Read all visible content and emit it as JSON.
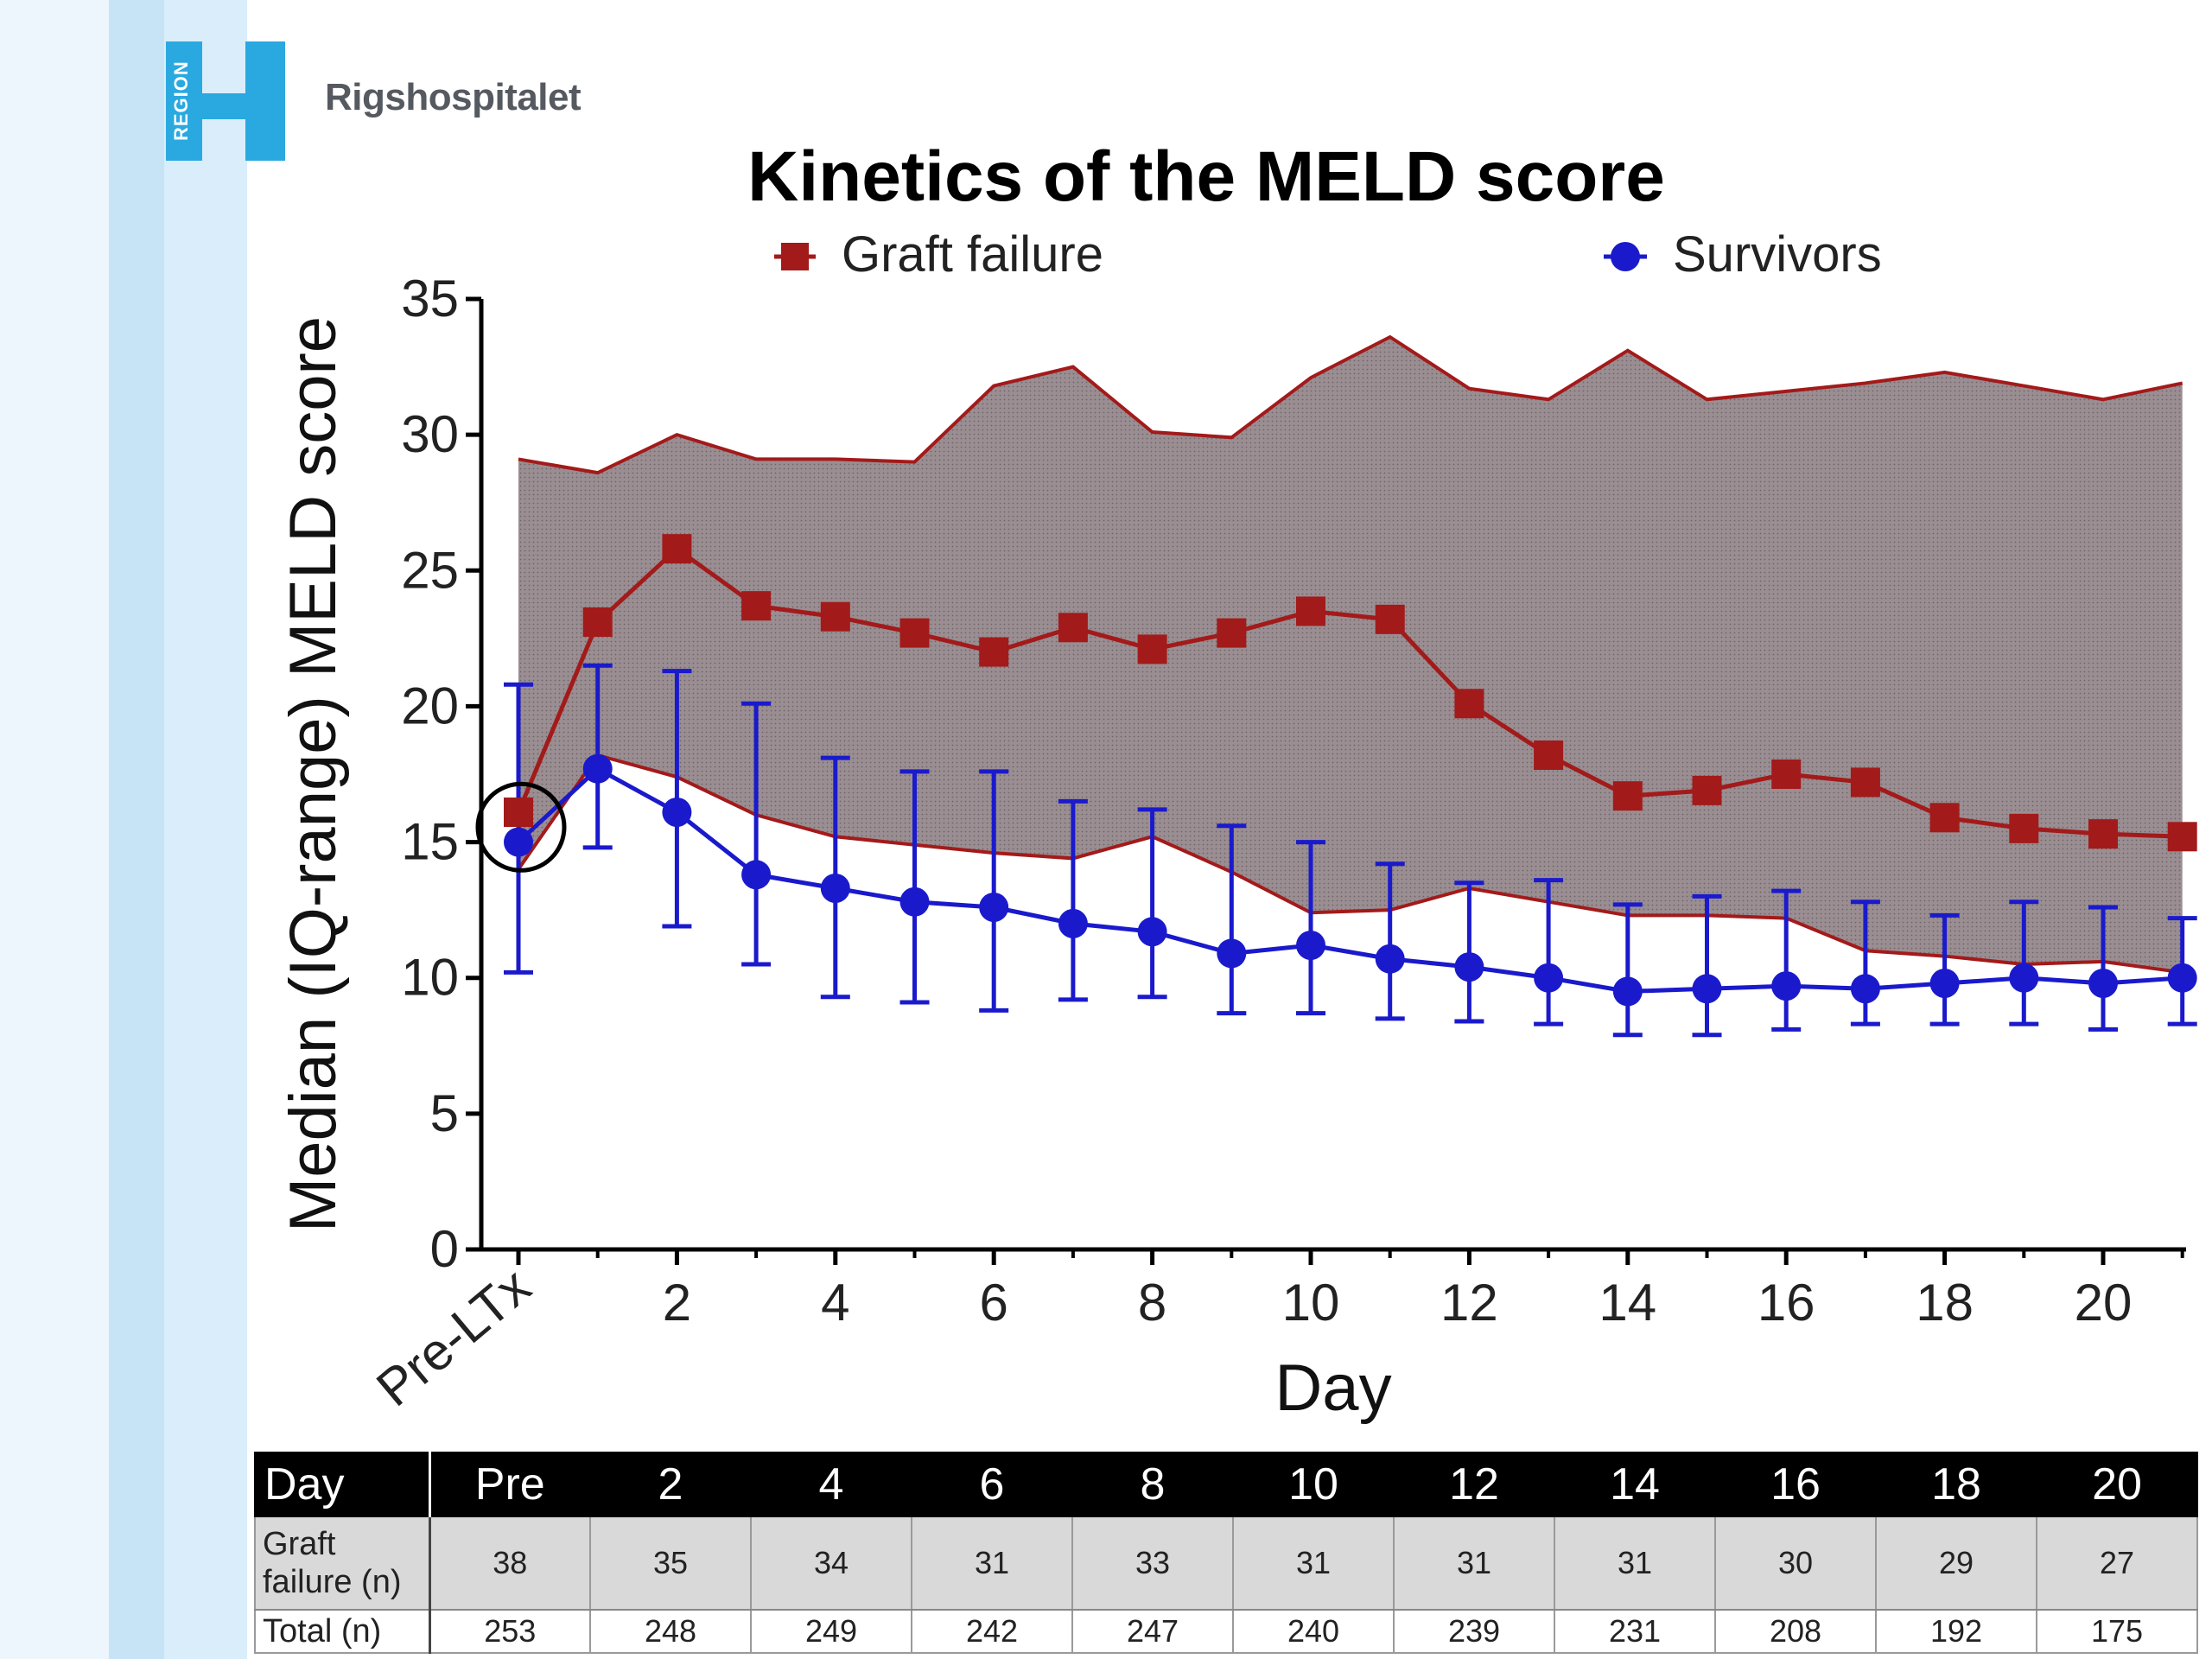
{
  "header": {
    "logo_text": "REGION",
    "hospital": "Rigshospitalet"
  },
  "colors": {
    "graft_failure": "#a31a1a",
    "survivors": "#1a1acc",
    "band_fill": "#9a8e92"
  },
  "chart_data": {
    "type": "line",
    "title": "Kinetics of the MELD score",
    "xlabel": "Day",
    "ylabel": "Median (IQ-range) MELD score",
    "ylim": [
      0,
      35
    ],
    "yticks": [
      0,
      5,
      10,
      15,
      20,
      25,
      30,
      35
    ],
    "xlim": [
      -0.5,
      21
    ],
    "xticks": [
      {
        "value": 0,
        "label": "Pre-LTx"
      },
      {
        "value": 2,
        "label": "2"
      },
      {
        "value": 4,
        "label": "4"
      },
      {
        "value": 6,
        "label": "6"
      },
      {
        "value": 8,
        "label": "8"
      },
      {
        "value": 10,
        "label": "10"
      },
      {
        "value": 12,
        "label": "12"
      },
      {
        "value": 14,
        "label": "14"
      },
      {
        "value": 16,
        "label": "16"
      },
      {
        "value": 18,
        "label": "18"
      },
      {
        "value": 20,
        "label": "20"
      }
    ],
    "legend_position": "top",
    "x": [
      0,
      1,
      2,
      3,
      4,
      5,
      6,
      7,
      8,
      9,
      10,
      11,
      12,
      13,
      14,
      15,
      16,
      17,
      18,
      19,
      20,
      21
    ],
    "series": [
      {
        "name": "Graft failure",
        "marker": "square",
        "values": [
          16.1,
          23.1,
          25.8,
          23.7,
          23.3,
          22.7,
          22.0,
          22.9,
          22.1,
          22.7,
          23.5,
          23.2,
          20.1,
          18.2,
          16.7,
          16.9,
          17.5,
          17.2,
          15.9,
          15.5,
          15.3,
          15.2
        ],
        "q1": [
          14.0,
          18.2,
          17.4,
          16.0,
          15.2,
          14.9,
          14.6,
          14.4,
          15.2,
          13.9,
          12.4,
          12.5,
          13.3,
          12.8,
          12.3,
          12.3,
          12.2,
          11.0,
          10.8,
          10.5,
          10.6,
          10.2
        ],
        "q3": [
          29.1,
          28.6,
          30.0,
          29.1,
          29.1,
          29.0,
          31.8,
          32.5,
          30.1,
          29.9,
          32.1,
          33.6,
          31.7,
          31.3,
          33.1,
          31.3,
          31.6,
          31.9,
          32.3,
          31.8,
          31.3,
          31.9
        ]
      },
      {
        "name": "Survivors",
        "marker": "circle",
        "values": [
          15.0,
          17.7,
          16.1,
          13.8,
          13.3,
          12.8,
          12.6,
          12.0,
          11.7,
          10.9,
          11.2,
          10.7,
          10.4,
          10.0,
          9.5,
          9.6,
          9.7,
          9.6,
          9.8,
          10.0,
          9.8,
          10.0
        ],
        "q1": [
          10.2,
          14.8,
          11.9,
          10.5,
          9.3,
          9.1,
          8.8,
          9.2,
          9.3,
          8.7,
          8.7,
          8.5,
          8.4,
          8.3,
          7.9,
          7.9,
          8.1,
          8.3,
          8.3,
          8.3,
          8.1,
          8.3
        ],
        "q3": [
          20.8,
          21.5,
          21.3,
          20.1,
          18.1,
          17.6,
          17.6,
          16.5,
          16.2,
          15.6,
          15.0,
          14.2,
          13.5,
          13.6,
          12.7,
          13.0,
          13.2,
          12.8,
          12.3,
          12.8,
          12.6,
          12.2
        ]
      }
    ]
  },
  "table": {
    "headers": [
      "Day",
      "Pre",
      "2",
      "4",
      "6",
      "8",
      "10",
      "12",
      "14",
      "16",
      "18",
      "20"
    ],
    "rows": [
      {
        "label_line1": "Graft",
        "label_line2": "failure (n)",
        "values": [
          "38",
          "35",
          "34",
          "31",
          "33",
          "31",
          "31",
          "31",
          "30",
          "29",
          "27"
        ]
      },
      {
        "label": "Total (n)",
        "values": [
          "253",
          "248",
          "249",
          "242",
          "247",
          "240",
          "239",
          "231",
          "208",
          "192",
          "175"
        ]
      }
    ]
  }
}
